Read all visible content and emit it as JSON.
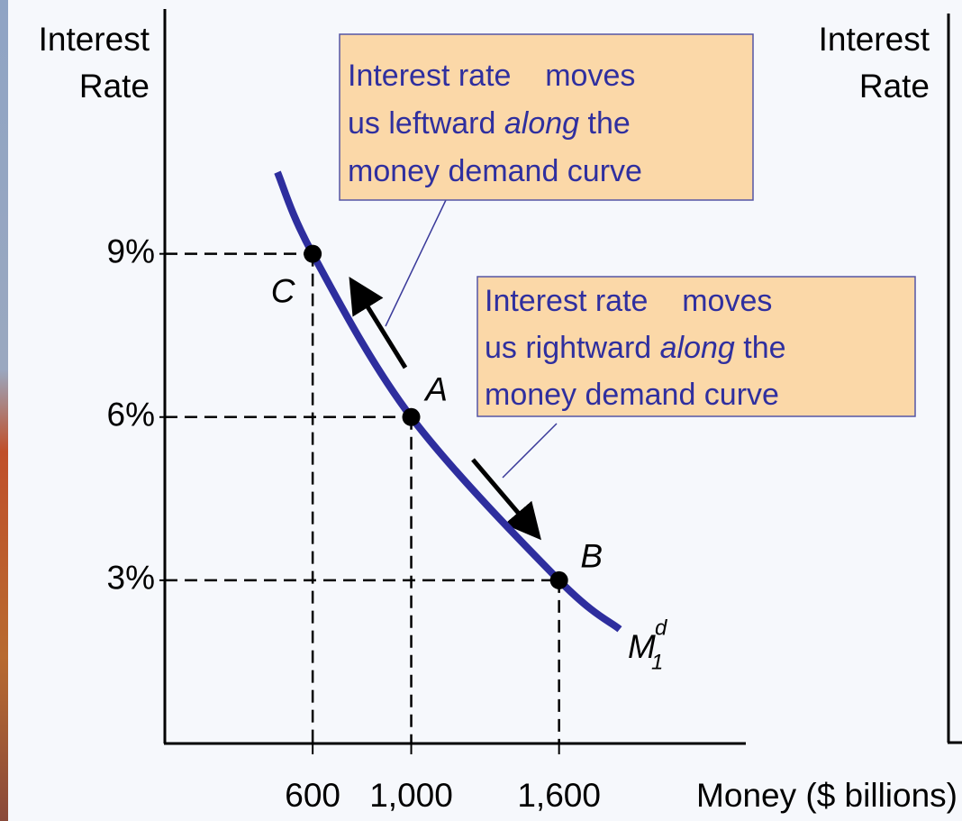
{
  "chart_data": {
    "type": "line",
    "ylabel": [
      "Interest",
      "Rate"
    ],
    "xlabel": "Money ($ billions)",
    "xlim": [
      0,
      2358
    ],
    "ylim": [
      0,
      13.5
    ],
    "xticks": [
      600,
      {
        "value": 1000,
        "label": "1,000"
      },
      {
        "value": 1600,
        "label": "1,600"
      }
    ],
    "yticks": [
      {
        "value": 3,
        "label": "3%"
      },
      {
        "value": 6,
        "label": "6%"
      },
      {
        "value": 9,
        "label": "9%"
      }
    ],
    "series": [
      {
        "name": "Money demand",
        "color": "#2e2e9e",
        "x": [
          457,
          600,
          1000,
          1600,
          1846
        ],
        "values": [
          10.5,
          9,
          6,
          3,
          2.1
        ]
      }
    ],
    "points": [
      {
        "label": "C",
        "x": 600,
        "y": 9
      },
      {
        "label": "A",
        "x": 1000,
        "y": 6
      },
      {
        "label": "B",
        "x": 1600,
        "y": 3
      }
    ],
    "curve_label": {
      "main": "M",
      "sub": "1",
      "sup": "d"
    },
    "annotations": [
      {
        "lines": [
          [
            "Interest rate    moves"
          ],
          [
            "us leftward ",
            "along",
            " the"
          ],
          [
            "money demand curve"
          ]
        ]
      },
      {
        "lines": [
          [
            "Interest rate    moves"
          ],
          [
            "us rightward ",
            "along",
            " the"
          ],
          [
            "money demand curve"
          ]
        ]
      }
    ],
    "emphasis": "along",
    "right_panel": {
      "ylabel": [
        "Interest",
        "Rate"
      ]
    }
  }
}
